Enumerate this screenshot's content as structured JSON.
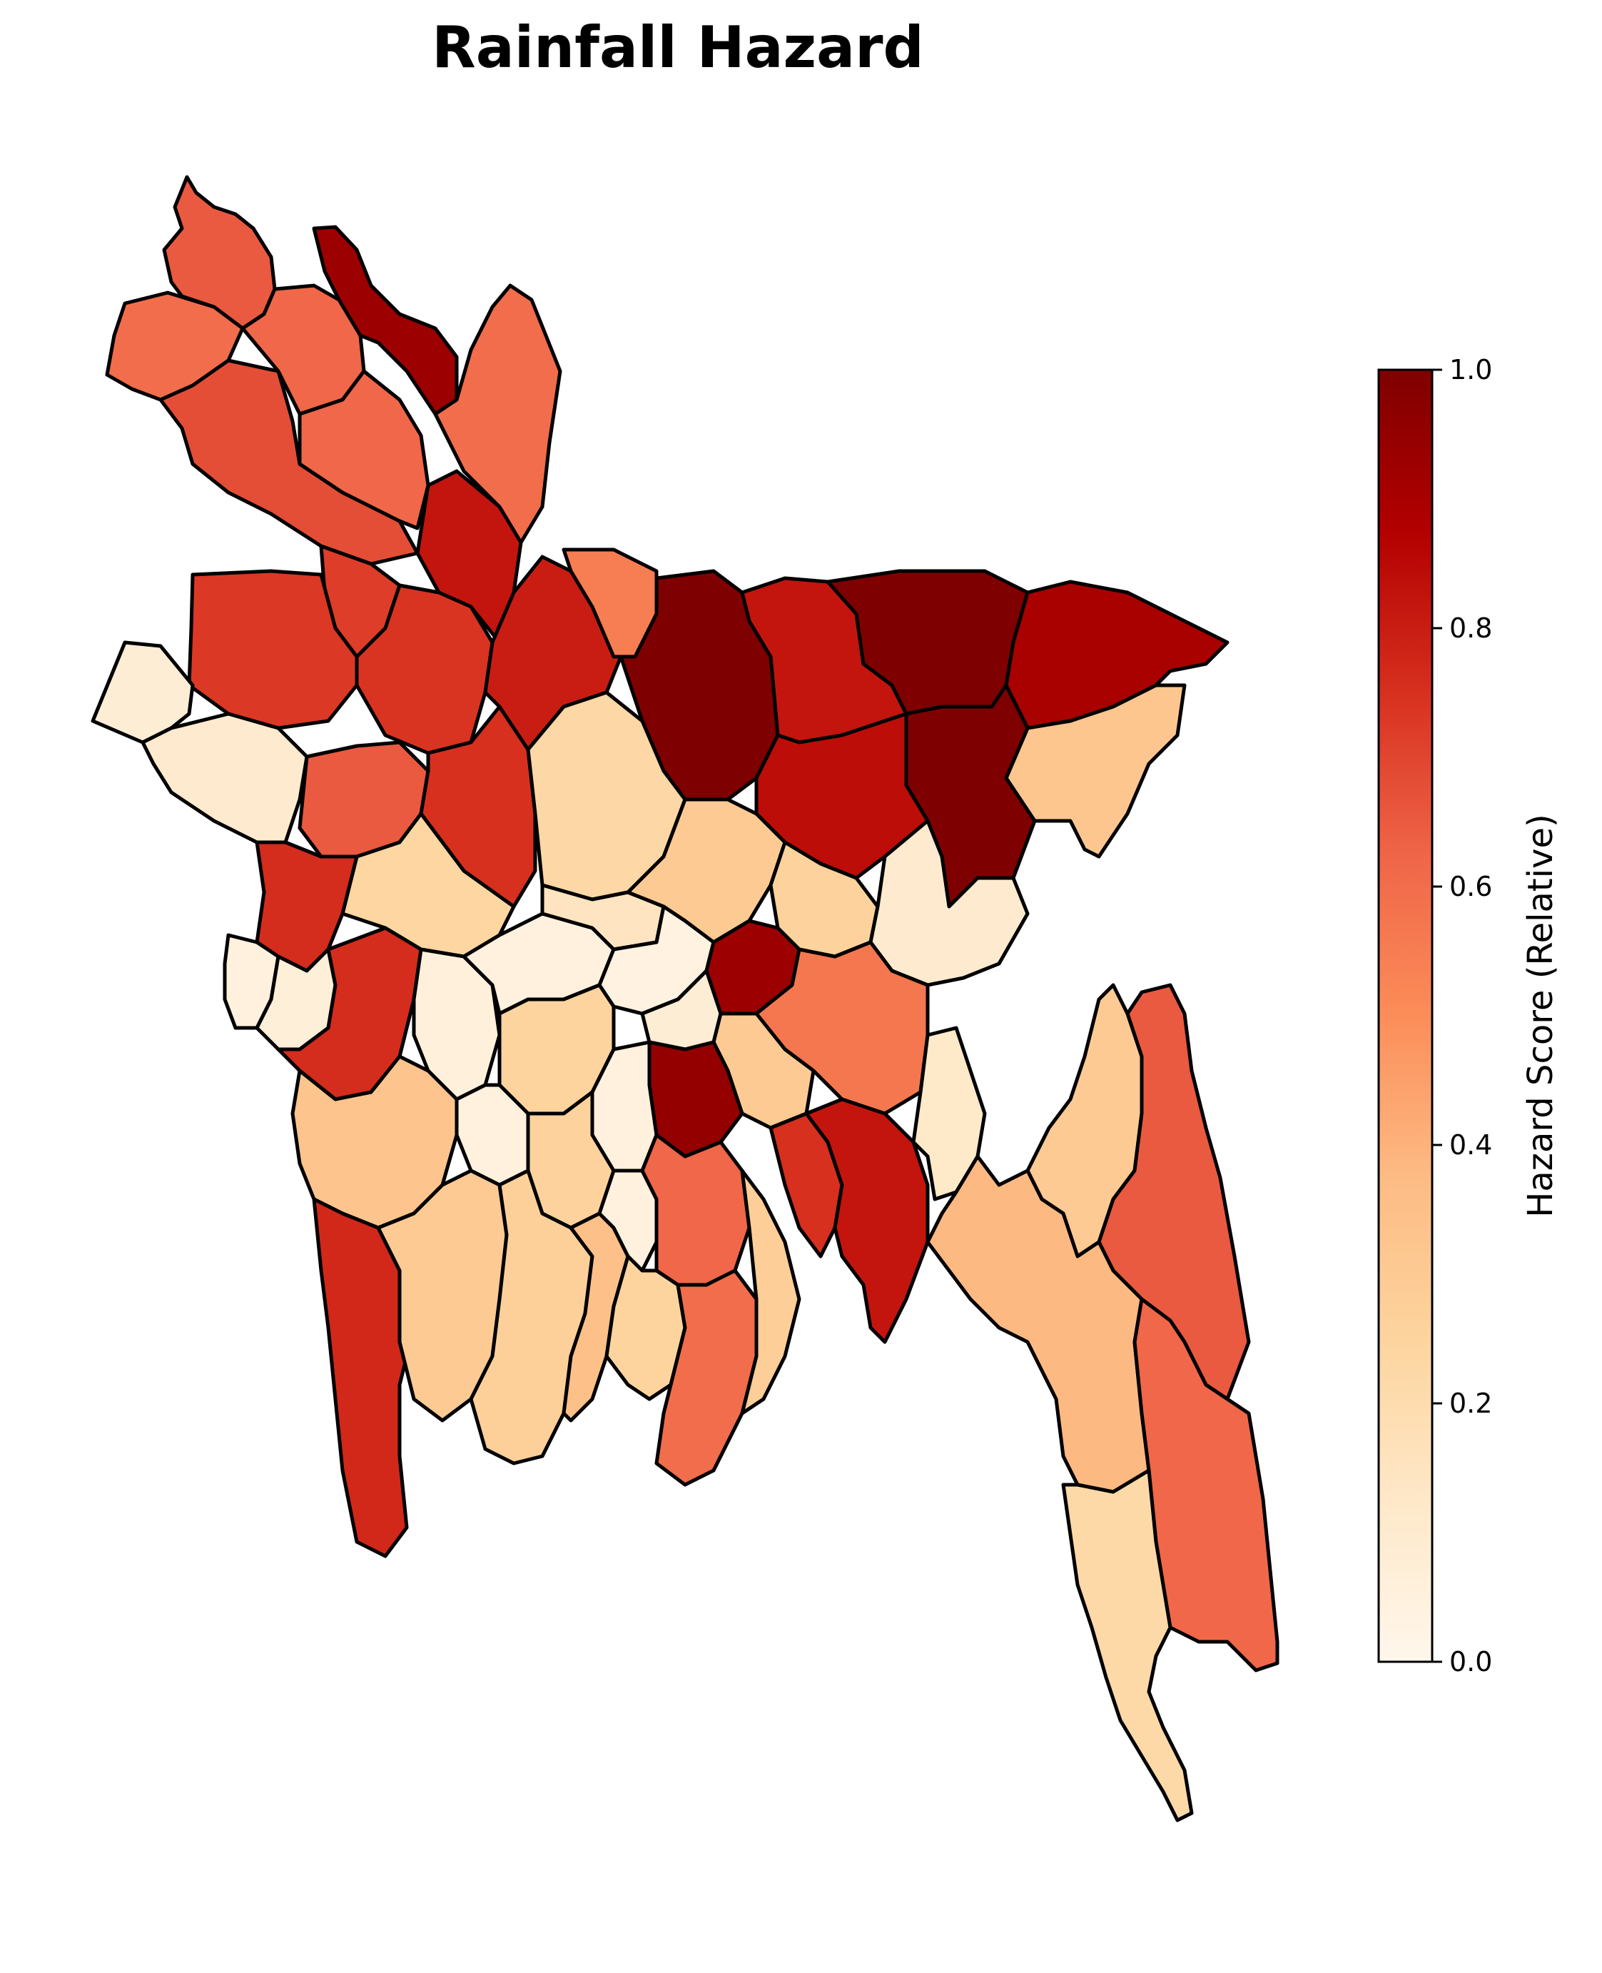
{
  "title": "Rainfall Hazard",
  "colorbar": {
    "label": "Hazard Score (Relative)",
    "ticks": [
      "0.0",
      "0.2",
      "0.4",
      "0.6",
      "0.8",
      "1.0"
    ],
    "min": 0.0,
    "max": 1.0,
    "colormap": "OrRd",
    "colors": [
      "#fff7ec",
      "#fee8c8",
      "#fdd49e",
      "#fdbb84",
      "#fc8d59",
      "#ef6548",
      "#d7301f",
      "#b30000",
      "#7f0000"
    ]
  },
  "chart_data": {
    "type": "choropleth",
    "title": "Rainfall Hazard",
    "colorbar_label": "Hazard Score (Relative)",
    "range": [
      0.0,
      1.0
    ],
    "regions": [
      {
        "id": "panchagarh",
        "value": 0.65
      },
      {
        "id": "thakurgaon",
        "value": 0.6
      },
      {
        "id": "dinajpur",
        "value": 0.68
      },
      {
        "id": "nilphamari",
        "value": 0.62
      },
      {
        "id": "lalmonirhat",
        "value": 0.93
      },
      {
        "id": "rangpur",
        "value": 0.62
      },
      {
        "id": "kurigram",
        "value": 0.6
      },
      {
        "id": "gaibandha",
        "value": 0.82
      },
      {
        "id": "joypurhat",
        "value": 0.72
      },
      {
        "id": "naogaon",
        "value": 0.73
      },
      {
        "id": "bogura",
        "value": 0.74
      },
      {
        "id": "chapai-nawabganj",
        "value": 0.08
      },
      {
        "id": "rajshahi",
        "value": 0.1
      },
      {
        "id": "natore",
        "value": 0.65
      },
      {
        "id": "sirajganj",
        "value": 0.75
      },
      {
        "id": "jamalpur",
        "value": 0.8
      },
      {
        "id": "sherpur",
        "value": 0.55
      },
      {
        "id": "mymensingh",
        "value": 1.0
      },
      {
        "id": "netrokona",
        "value": 0.82
      },
      {
        "id": "sunamganj",
        "value": 1.0
      },
      {
        "id": "sylhet",
        "value": 0.9
      },
      {
        "id": "moulvibazar",
        "value": 0.32
      },
      {
        "id": "habiganj",
        "value": 1.0
      },
      {
        "id": "kishoreganj",
        "value": 0.84
      },
      {
        "id": "tangail",
        "value": 0.23
      },
      {
        "id": "pabna",
        "value": 0.24
      },
      {
        "id": "kushtia",
        "value": 0.76
      },
      {
        "id": "meherpur",
        "value": 0.05
      },
      {
        "id": "chuadanga",
        "value": 0.07
      },
      {
        "id": "jhenaidah",
        "value": 0.76
      },
      {
        "id": "magura",
        "value": 0.06
      },
      {
        "id": "rajbari",
        "value": 0.05
      },
      {
        "id": "manikganj",
        "value": 0.15
      },
      {
        "id": "gazipur",
        "value": 0.3
      },
      {
        "id": "narsingdi",
        "value": 0.26
      },
      {
        "id": "brahmanbaria",
        "value": 0.1
      },
      {
        "id": "dhaka",
        "value": 0.04
      },
      {
        "id": "narayanganj",
        "value": 0.93
      },
      {
        "id": "munshiganj",
        "value": 0.08
      },
      {
        "id": "faridpur",
        "value": 0.25
      },
      {
        "id": "comilla",
        "value": 0.57
      },
      {
        "id": "chandpur",
        "value": 0.3
      },
      {
        "id": "shariatpur",
        "value": 0.95
      },
      {
        "id": "madaripur",
        "value": 0.05
      },
      {
        "id": "gopalganj",
        "value": 0.26
      },
      {
        "id": "narail",
        "value": 0.05
      },
      {
        "id": "jessore",
        "value": 0.33
      },
      {
        "id": "satkhira",
        "value": 0.77
      },
      {
        "id": "khulna",
        "value": 0.3
      },
      {
        "id": "bagerhat",
        "value": 0.27
      },
      {
        "id": "pirojpur",
        "value": 0.35
      },
      {
        "id": "jhalokati",
        "value": 0.05
      },
      {
        "id": "barishal",
        "value": 0.62
      },
      {
        "id": "barguna",
        "value": 0.25
      },
      {
        "id": "patuakhali",
        "value": 0.6
      },
      {
        "id": "bhola",
        "value": 0.28
      },
      {
        "id": "lakshmipur",
        "value": 0.75
      },
      {
        "id": "noakhali",
        "value": 0.82
      },
      {
        "id": "feni",
        "value": 0.12
      },
      {
        "id": "khagrachhari",
        "value": 0.3
      },
      {
        "id": "rangamati",
        "value": 0.65
      },
      {
        "id": "chattogram",
        "value": 0.38
      },
      {
        "id": "bandarban",
        "value": 0.62
      },
      {
        "id": "coxs-bazar",
        "value": 0.22
      }
    ]
  }
}
